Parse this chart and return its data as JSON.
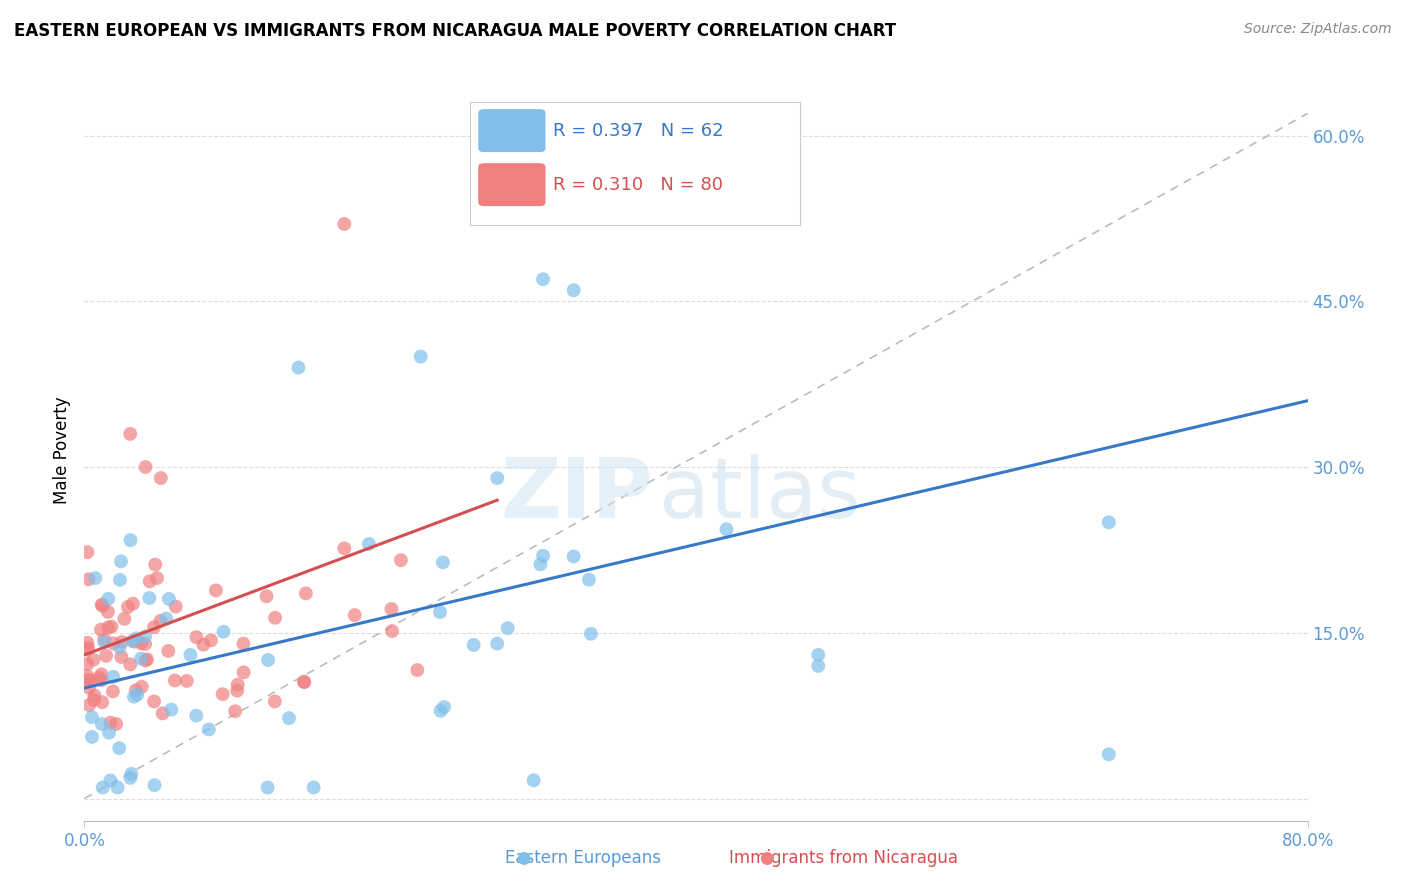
{
  "title": "EASTERN EUROPEAN VS IMMIGRANTS FROM NICARAGUA MALE POVERTY CORRELATION CHART",
  "source": "Source: ZipAtlas.com",
  "xlim": [
    0.0,
    0.8
  ],
  "ylim": [
    -0.02,
    0.65
  ],
  "ylabel": "Male Poverty",
  "legend_blue_r": "R = 0.397",
  "legend_blue_n": "N = 62",
  "legend_pink_r": "R = 0.310",
  "legend_pink_n": "N = 80",
  "label_blue": "Eastern Europeans",
  "label_pink": "Immigrants from Nicaragua",
  "blue_color": "#7fbfea",
  "pink_color": "#f08080",
  "trend_blue_color": "#3878c8",
  "trend_pink_color": "#d45050",
  "diagonal_color": "#bbbbbb",
  "watermark_zip": "ZIP",
  "watermark_atlas": "atlas",
  "yticks": [
    0.0,
    0.15,
    0.3,
    0.45,
    0.6
  ],
  "ytick_labels": [
    "",
    "15.0%",
    "30.0%",
    "45.0%",
    "60.0%"
  ],
  "xticks": [
    0.0,
    0.8
  ],
  "xtick_labels": [
    "0.0%",
    "80.0%"
  ],
  "tick_color": "#5b9bd5",
  "title_fontsize": 12,
  "source_fontsize": 10,
  "axis_fontsize": 12
}
